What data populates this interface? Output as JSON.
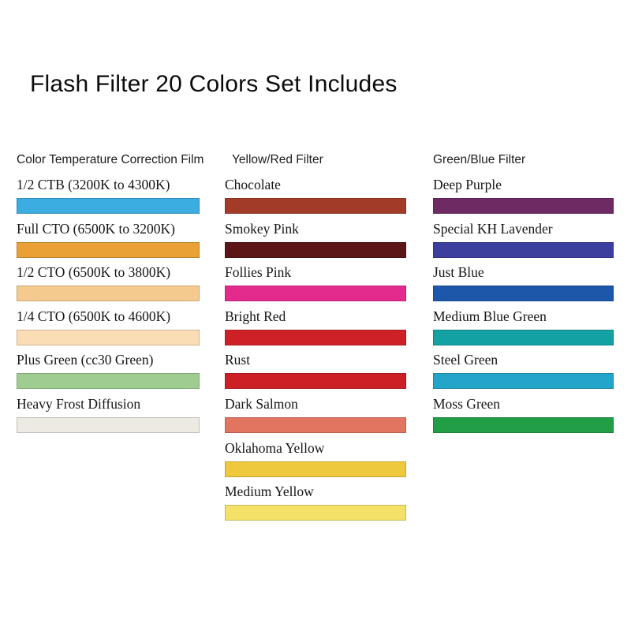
{
  "title": "Flash Filter 20 Colors Set Includes",
  "columns": [
    {
      "header": "Color Temperature Correction Film",
      "items": [
        {
          "label": "1/2 CTB (3200K to 4300K)",
          "color": "#3BADE0"
        },
        {
          "label": "Full CTO (6500K to 3200K)",
          "color": "#E9A136"
        },
        {
          "label": "1/2 CTO (6500K to 3800K)",
          "color": "#F5CA8F"
        },
        {
          "label": "1/4 CTO (6500K to 4600K)",
          "color": "#FADDB5"
        },
        {
          "label": "Plus Green (cc30 Green)",
          "color": "#9FCC90"
        },
        {
          "label": "Heavy Frost Diffusion",
          "color": "#EDEAE3"
        }
      ]
    },
    {
      "header": "Yellow/Red Filter",
      "items": [
        {
          "label": "Chocolate",
          "color": "#A23C29"
        },
        {
          "label": "Smokey Pink",
          "color": "#5D1617"
        },
        {
          "label": "Follies Pink",
          "color": "#E32B8D"
        },
        {
          "label": "Bright Red",
          "color": "#CE2127"
        },
        {
          "label": "Rust",
          "color": "#CB2026"
        },
        {
          "label": "Dark Salmon",
          "color": "#E27560"
        },
        {
          "label": "Oklahoma Yellow",
          "color": "#EFC93D"
        },
        {
          "label": "Medium Yellow",
          "color": "#F3E267"
        }
      ]
    },
    {
      "header": "Green/Blue Filter",
      "items": [
        {
          "label": "Deep Purple",
          "color": "#6D2A63"
        },
        {
          "label": "Special KH Lavender",
          "color": "#3C3F9E"
        },
        {
          "label": "Just Blue",
          "color": "#1D57A9"
        },
        {
          "label": "Medium Blue Green",
          "color": "#13A1A3"
        },
        {
          "label": "Steel Green",
          "color": "#23A5CA"
        },
        {
          "label": "Moss Green",
          "color": "#229E47"
        }
      ]
    }
  ]
}
